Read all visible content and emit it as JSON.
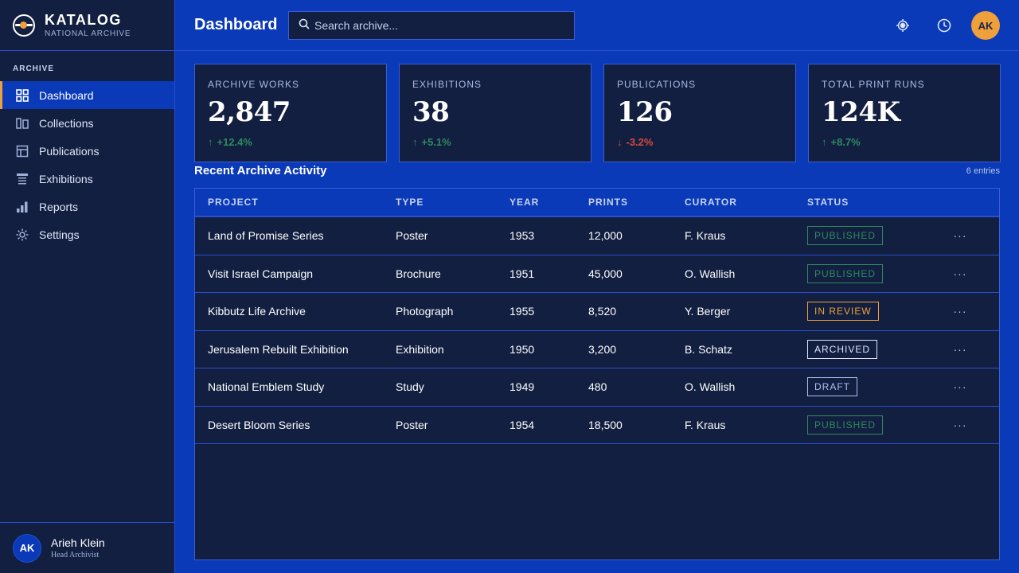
{
  "app": {
    "name": "KATALOG",
    "subtitle": "NATIONAL ARCHIVE"
  },
  "sidebar": {
    "section_label": "ARCHIVE",
    "items": [
      {
        "label": "Dashboard",
        "icon": "grid-icon",
        "active": true
      },
      {
        "label": "Collections",
        "icon": "collections-icon"
      },
      {
        "label": "Publications",
        "icon": "publications-icon"
      },
      {
        "label": "Exhibitions",
        "icon": "exhibitions-icon"
      },
      {
        "label": "Reports",
        "icon": "bar-chart-icon"
      },
      {
        "label": "Settings",
        "icon": "gear-icon"
      }
    ],
    "user": {
      "initials": "AK",
      "name": "Arieh Klein",
      "role": "Head Archivist"
    }
  },
  "header": {
    "title": "Dashboard",
    "search_placeholder": "Search archive...",
    "avatar_initials": "AK"
  },
  "stats": [
    {
      "label": "ARCHIVE WORKS",
      "value": "2,847",
      "delta": "+12.4%",
      "direction": "up"
    },
    {
      "label": "EXHIBITIONS",
      "value": "38",
      "delta": "+5.1%",
      "direction": "up"
    },
    {
      "label": "PUBLICATIONS",
      "value": "126",
      "delta": "-3.2%",
      "direction": "down"
    },
    {
      "label": "TOTAL PRINT RUNS",
      "value": "124K",
      "delta": "+8.7%",
      "direction": "up"
    }
  ],
  "activity": {
    "title": "Recent Archive Activity",
    "count": "6 entries",
    "columns": [
      "PROJECT",
      "TYPE",
      "YEAR",
      "PRINTS",
      "CURATOR",
      "STATUS"
    ],
    "rows": [
      {
        "project": "Land of Promise Series",
        "type": "Poster",
        "year": "1953",
        "prints": "12,000",
        "curator": "F. Kraus",
        "status": "PUBLISHED",
        "status_kind": "published"
      },
      {
        "project": "Visit Israel Campaign",
        "type": "Brochure",
        "year": "1951",
        "prints": "45,000",
        "curator": "O. Wallish",
        "status": "PUBLISHED",
        "status_kind": "published"
      },
      {
        "project": "Kibbutz Life Archive",
        "type": "Photograph",
        "year": "1955",
        "prints": "8,520",
        "curator": "Y. Berger",
        "status": "IN REVIEW",
        "status_kind": "review"
      },
      {
        "project": "Jerusalem Rebuilt Exhibition",
        "type": "Exhibition",
        "year": "1950",
        "prints": "3,200",
        "curator": "B. Schatz",
        "status": "ARCHIVED",
        "status_kind": "archived"
      },
      {
        "project": "National Emblem Study",
        "type": "Study",
        "year": "1949",
        "prints": "480",
        "curator": "O. Wallish",
        "status": "DRAFT",
        "status_kind": "draft"
      },
      {
        "project": "Desert Bloom Series",
        "type": "Poster",
        "year": "1954",
        "prints": "18,500",
        "curator": "F. Kraus",
        "status": "PUBLISHED",
        "status_kind": "published"
      }
    ],
    "row_action": "···"
  },
  "colors": {
    "primary": "#0a3ab8",
    "panel": "#121f40",
    "accent": "#f0a03a",
    "positive": "#2e8b5e",
    "negative": "#d94a3a"
  }
}
